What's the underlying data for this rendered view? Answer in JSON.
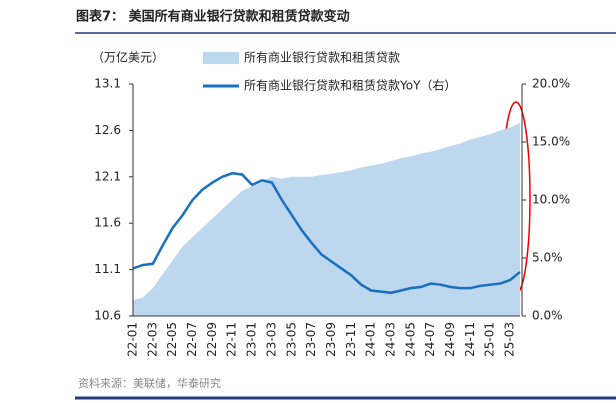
{
  "chart_data": {
    "type": "area_line",
    "title": "图表7： 美国所有商业银行贷款和租赁贷款变动",
    "y_label": "（万亿美元）",
    "source": "资料来源：美联储，华泰研究",
    "categories": [
      "22-01",
      null,
      "22-03",
      null,
      "22-05",
      null,
      "22-07",
      null,
      "22-09",
      null,
      "22-11",
      null,
      "23-01",
      null,
      "23-03",
      null,
      "23-05",
      null,
      "23-07",
      null,
      "23-09",
      null,
      "23-11",
      null,
      "24-01",
      null,
      "24-03",
      null,
      "24-05",
      null,
      "24-07",
      null,
      "24-09",
      null,
      "24-11",
      null,
      "25-01",
      null,
      "25-03",
      null
    ],
    "series": [
      {
        "name": "所有商业银行贷款和租赁贷款",
        "color": "#bdd7ee",
        "kind": "area",
        "values": [
          10.77,
          10.8,
          10.9,
          11.05,
          11.2,
          11.35,
          11.45,
          11.55,
          11.65,
          11.75,
          11.85,
          11.95,
          12.0,
          12.05,
          12.1,
          12.08,
          12.1,
          12.1,
          12.1,
          12.12,
          12.13,
          12.15,
          12.17,
          12.2,
          12.22,
          12.24,
          12.27,
          12.3,
          12.32,
          12.35,
          12.37,
          12.4,
          12.43,
          12.46,
          12.5,
          12.53,
          12.56,
          12.6,
          12.63,
          12.68
        ]
      },
      {
        "name": "所有商业银行贷款和租赁贷款YoY（右）",
        "color": "#1a6fc0",
        "kind": "line",
        "axis": "y2",
        "values": [
          4.1,
          4.4,
          4.5,
          6.1,
          7.6,
          8.7,
          10.0,
          10.9,
          11.5,
          12.0,
          12.3,
          12.2,
          11.3,
          11.7,
          11.5,
          10.0,
          8.7,
          7.4,
          6.3,
          5.3,
          4.7,
          4.1,
          3.5,
          2.7,
          2.2,
          2.1,
          2.0,
          2.2,
          2.4,
          2.5,
          2.8,
          2.7,
          2.5,
          2.4,
          2.4,
          2.6,
          2.7,
          2.8,
          3.1,
          3.8
        ]
      }
    ],
    "ylim": [
      10.6,
      13.1
    ],
    "yticks": [
      10.6,
      11.1,
      11.6,
      12.1,
      12.6,
      13.1
    ],
    "y2lim": [
      0,
      20
    ],
    "y2ticks": [
      {
        "value": 0,
        "label": "0.0%"
      },
      {
        "value": 5,
        "label": "5.0%"
      },
      {
        "value": 10,
        "label": "10.0%"
      },
      {
        "value": 15,
        "label": "15.0%"
      },
      {
        "value": 20,
        "label": "20.0%"
      }
    ],
    "legend": "top-left"
  }
}
